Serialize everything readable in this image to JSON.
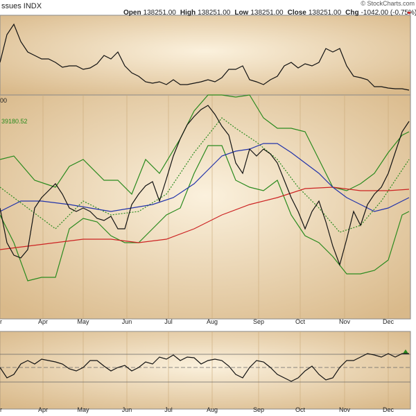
{
  "chart_data": [
    {
      "type": "line",
      "symbol": "ssues INDX",
      "copyright": "© StockCharts.com",
      "ohlc": [
        {
          "label": "Open",
          "value": "138251.00"
        },
        {
          "label": "High",
          "value": "138251.00"
        },
        {
          "label": "Low",
          "value": "138251.00"
        },
        {
          "label": "Close",
          "value": "138251.00"
        },
        {
          "label": "Chg",
          "value": "-1042.00 (-0.75%)"
        }
      ],
      "xlim": [
        0,
        592
      ],
      "ylim": [
        0,
        115
      ],
      "series": [
        {
          "color": "#111111",
          "x": [
            0,
            10,
            20,
            30,
            40,
            50,
            60,
            70,
            80,
            90,
            100,
            110,
            120,
            130,
            140,
            150,
            160,
            170,
            180,
            190,
            200,
            210,
            220,
            230,
            240,
            250,
            260,
            270,
            280,
            290,
            300,
            310,
            320,
            330,
            340,
            350,
            360,
            370,
            380,
            390,
            400,
            410,
            420,
            430,
            440,
            450,
            460,
            470,
            480,
            490,
            500,
            510,
            520,
            530,
            540,
            550,
            560,
            570,
            580,
            590
          ],
          "values": [
            47,
            87,
            102,
            77,
            62,
            57,
            52,
            52,
            47,
            40,
            42,
            42,
            37,
            39,
            45,
            57,
            52,
            62,
            42,
            32,
            27,
            19,
            17,
            19,
            15,
            22,
            15,
            15,
            17,
            19,
            22,
            19,
            25,
            37,
            37,
            42,
            22,
            19,
            15,
            22,
            27,
            42,
            47,
            39,
            45,
            42,
            47,
            67,
            62,
            67,
            42,
            27,
            25,
            22,
            12,
            12,
            10,
            9,
            9,
            7
          ]
        }
      ]
    },
    {
      "type": "line",
      "annotations": [
        "00",
        "39180.52"
      ],
      "xlim": [
        0,
        592
      ],
      "ylim": [
        0,
        323
      ],
      "grid": true,
      "xticks": [
        {
          "value": 0,
          "label": "r"
        },
        {
          "value": 62,
          "label": "Apr"
        },
        {
          "value": 120,
          "label": "May"
        },
        {
          "value": 183,
          "label": "Jun"
        },
        {
          "value": 243,
          "label": "Jul"
        },
        {
          "value": 306,
          "label": "Aug"
        },
        {
          "value": 373,
          "label": "Sep"
        },
        {
          "value": 433,
          "label": "Oct"
        },
        {
          "value": 497,
          "label": "Nov"
        },
        {
          "value": 560,
          "label": "Dec"
        }
      ],
      "series": [
        {
          "color": "#2a8a1e",
          "x": [
            0,
            20,
            50,
            80,
            100,
            120,
            150,
            170,
            190,
            210,
            230,
            260,
            280,
            300,
            320,
            340,
            360,
            380,
            400,
            420,
            440,
            460,
            480,
            500,
            520,
            540,
            560,
            580,
            590
          ],
          "values": [
            230,
            235,
            200,
            190,
            220,
            230,
            200,
            200,
            180,
            230,
            210,
            260,
            300,
            323,
            323,
            320,
            323,
            290,
            275,
            275,
            270,
            230,
            190,
            185,
            195,
            210,
            240,
            265,
            270
          ]
        },
        {
          "color": "#2a8a1e",
          "x": [
            0,
            20,
            40,
            60,
            80,
            100,
            120,
            140,
            160,
            180,
            200,
            220,
            240,
            260,
            280,
            300,
            320,
            340,
            360,
            380,
            400,
            420,
            440,
            460,
            480,
            500,
            520,
            540,
            560,
            580,
            590
          ],
          "values": [
            150,
            110,
            55,
            60,
            60,
            130,
            145,
            140,
            120,
            110,
            110,
            130,
            150,
            160,
            210,
            250,
            250,
            200,
            190,
            185,
            200,
            150,
            120,
            110,
            90,
            65,
            65,
            70,
            85,
            150,
            155
          ]
        },
        {
          "color": "#2a8a1e",
          "dash": true,
          "x": [
            0,
            40,
            80,
            120,
            160,
            200,
            240,
            280,
            320,
            340,
            370,
            400,
            430,
            460,
            490,
            520,
            550,
            590
          ],
          "values": [
            190,
            160,
            130,
            170,
            150,
            155,
            180,
            240,
            290,
            275,
            255,
            230,
            190,
            160,
            125,
            135,
            170,
            230
          ]
        },
        {
          "color": "#cc2222",
          "x": [
            0,
            40,
            80,
            120,
            160,
            200,
            240,
            280,
            320,
            360,
            400,
            440,
            480,
            520,
            560,
            590
          ],
          "values": [
            100,
            105,
            110,
            115,
            115,
            110,
            115,
            130,
            150,
            165,
            175,
            188,
            190,
            185,
            185,
            187
          ]
        },
        {
          "color": "#2233aa",
          "x": [
            0,
            30,
            60,
            100,
            130,
            160,
            190,
            220,
            250,
            280,
            300,
            320,
            340,
            360,
            380,
            400,
            420,
            440,
            460,
            480,
            500,
            520,
            540,
            560,
            580,
            590
          ],
          "values": [
            155,
            170,
            170,
            165,
            160,
            155,
            160,
            165,
            175,
            195,
            215,
            235,
            242,
            245,
            253,
            253,
            240,
            225,
            210,
            190,
            175,
            165,
            155,
            160,
            170,
            175
          ]
        },
        {
          "color": "#111111",
          "x": [
            0,
            10,
            20,
            30,
            40,
            50,
            60,
            70,
            80,
            90,
            100,
            110,
            120,
            130,
            140,
            150,
            160,
            170,
            180,
            190,
            200,
            210,
            220,
            230,
            240,
            250,
            260,
            270,
            280,
            290,
            300,
            310,
            320,
            330,
            340,
            350,
            360,
            370,
            380,
            390,
            400,
            410,
            420,
            430,
            440,
            450,
            460,
            470,
            480,
            490,
            500,
            510,
            520,
            530,
            540,
            550,
            560,
            570,
            580,
            590
          ],
          "values": [
            160,
            110,
            92,
            88,
            100,
            160,
            175,
            185,
            195,
            180,
            160,
            155,
            160,
            155,
            145,
            142,
            148,
            130,
            130,
            165,
            180,
            192,
            198,
            170,
            202,
            235,
            260,
            280,
            292,
            302,
            308,
            295,
            278,
            265,
            225,
            210,
            245,
            235,
            245,
            238,
            225,
            200,
            175,
            155,
            130,
            155,
            170,
            140,
            105,
            78,
            115,
            155,
            135,
            165,
            180,
            190,
            210,
            240,
            270,
            285
          ]
        }
      ]
    },
    {
      "type": "line",
      "xlim": [
        0,
        592
      ],
      "ylim": [
        0,
        112
      ],
      "grid": true,
      "hlines": [
        79,
        60,
        39
      ],
      "xticks": [
        {
          "value": 0,
          "label": "r"
        },
        {
          "value": 62,
          "label": "Apr"
        },
        {
          "value": 120,
          "label": "May"
        },
        {
          "value": 183,
          "label": "Jun"
        },
        {
          "value": 243,
          "label": "Jul"
        },
        {
          "value": 306,
          "label": "Aug"
        },
        {
          "value": 373,
          "label": "Sep"
        },
        {
          "value": 433,
          "label": "Oct"
        },
        {
          "value": 497,
          "label": "Nov"
        },
        {
          "value": 560,
          "label": "Dec"
        }
      ],
      "series": [
        {
          "color": "#111111",
          "x": [
            0,
            10,
            20,
            30,
            40,
            50,
            60,
            70,
            80,
            90,
            100,
            110,
            120,
            130,
            140,
            150,
            160,
            170,
            180,
            190,
            200,
            210,
            220,
            230,
            240,
            250,
            260,
            270,
            280,
            290,
            300,
            310,
            320,
            330,
            340,
            350,
            360,
            370,
            380,
            390,
            400,
            410,
            420,
            430,
            440,
            450,
            460,
            470,
            480,
            490,
            500,
            510,
            520,
            530,
            540,
            550,
            560,
            570,
            580,
            590
          ],
          "values": [
            60,
            45,
            50,
            65,
            70,
            65,
            72,
            70,
            68,
            65,
            58,
            55,
            60,
            70,
            70,
            62,
            55,
            60,
            63,
            55,
            60,
            68,
            65,
            75,
            72,
            78,
            70,
            75,
            74,
            65,
            70,
            72,
            70,
            62,
            50,
            45,
            60,
            70,
            68,
            60,
            50,
            45,
            40,
            45,
            55,
            62,
            50,
            42,
            45,
            60,
            70,
            70,
            75,
            80,
            78,
            75,
            80,
            75,
            80,
            80
          ]
        }
      ]
    }
  ]
}
